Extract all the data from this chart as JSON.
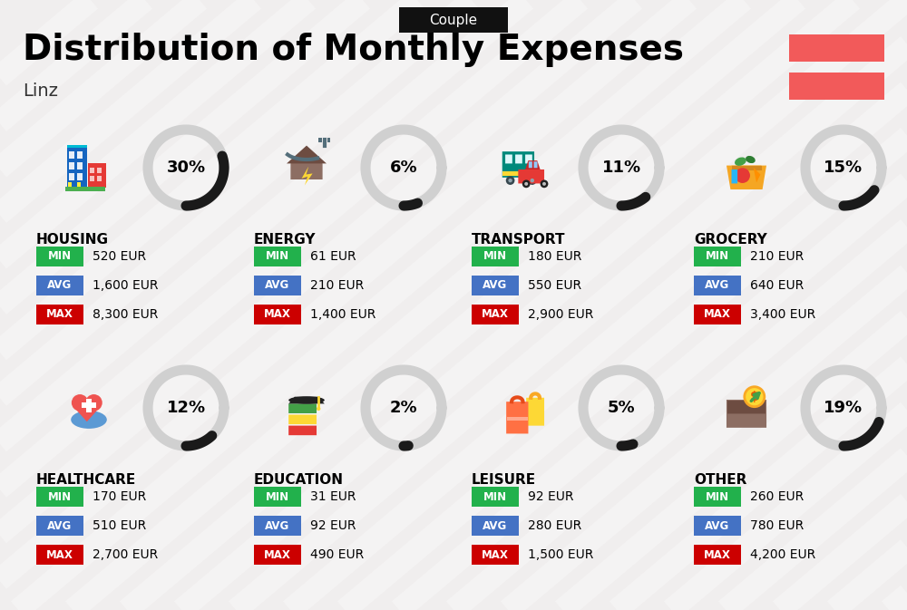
{
  "title": "Distribution of Monthly Expenses",
  "subtitle": "Linz",
  "badge": "Couple",
  "bg_color": "#f0eeee",
  "categories": [
    {
      "name": "HOUSING",
      "pct": 30,
      "min": "520 EUR",
      "avg": "1,600 EUR",
      "max": "8,300 EUR",
      "col": 0,
      "row": 0
    },
    {
      "name": "ENERGY",
      "pct": 6,
      "min": "61 EUR",
      "avg": "210 EUR",
      "max": "1,400 EUR",
      "col": 1,
      "row": 0
    },
    {
      "name": "TRANSPORT",
      "pct": 11,
      "min": "180 EUR",
      "avg": "550 EUR",
      "max": "2,900 EUR",
      "col": 2,
      "row": 0
    },
    {
      "name": "GROCERY",
      "pct": 15,
      "min": "210 EUR",
      "avg": "640 EUR",
      "max": "3,400 EUR",
      "col": 3,
      "row": 0
    },
    {
      "name": "HEALTHCARE",
      "pct": 12,
      "min": "170 EUR",
      "avg": "510 EUR",
      "max": "2,700 EUR",
      "col": 0,
      "row": 1
    },
    {
      "name": "EDUCATION",
      "pct": 2,
      "min": "31 EUR",
      "avg": "92 EUR",
      "max": "490 EUR",
      "col": 1,
      "row": 1
    },
    {
      "name": "LEISURE",
      "pct": 5,
      "min": "92 EUR",
      "avg": "280 EUR",
      "max": "1,500 EUR",
      "col": 2,
      "row": 1
    },
    {
      "name": "OTHER",
      "pct": 19,
      "min": "260 EUR",
      "avg": "780 EUR",
      "max": "4,200 EUR",
      "col": 3,
      "row": 1
    }
  ],
  "min_color": "#22b14c",
  "avg_color": "#4472c4",
  "max_color": "#cc0000",
  "label_text_color": "#ffffff",
  "arc_color_dark": "#1a1a1a",
  "arc_color_light": "#d0d0d0",
  "flag_color1": "#f25a5a",
  "flag_color2": "#f25a5a",
  "header_bg": "#111111",
  "header_text": "#ffffff",
  "stripe_color": "#ffffff",
  "stripe_alpha": 0.3
}
